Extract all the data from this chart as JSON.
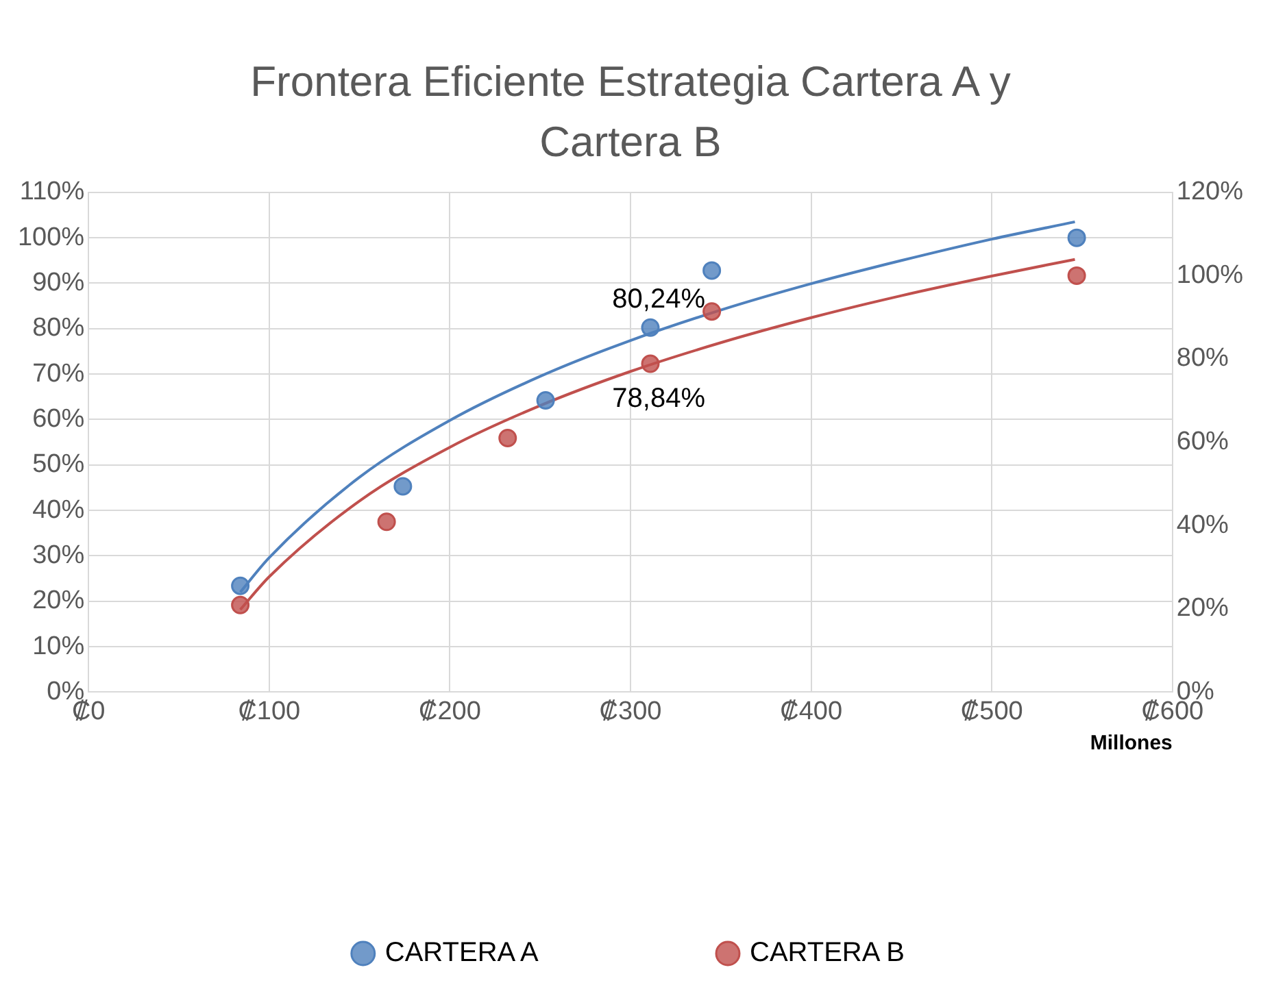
{
  "chart_data": {
    "type": "scatter",
    "title": "Frontera Eficiente Estrategia Cartera A y Cartera B",
    "xlabel": "Millones",
    "xlim": [
      0,
      600
    ],
    "xticks": [
      {
        "value": 0,
        "label": "₡0"
      },
      {
        "value": 100,
        "label": "₡100"
      },
      {
        "value": 200,
        "label": "₡200"
      },
      {
        "value": 300,
        "label": "₡300"
      },
      {
        "value": 400,
        "label": "₡400"
      },
      {
        "value": 500,
        "label": "₡500"
      },
      {
        "value": 600,
        "label": "₡600"
      }
    ],
    "ylim": [
      0,
      110
    ],
    "yticks": [
      {
        "value": 0,
        "label": "0%"
      },
      {
        "value": 10,
        "label": "10%"
      },
      {
        "value": 20,
        "label": "20%"
      },
      {
        "value": 30,
        "label": "30%"
      },
      {
        "value": 40,
        "label": "40%"
      },
      {
        "value": 50,
        "label": "50%"
      },
      {
        "value": 60,
        "label": "60%"
      },
      {
        "value": 70,
        "label": "70%"
      },
      {
        "value": 80,
        "label": "80%"
      },
      {
        "value": 90,
        "label": "90%"
      },
      {
        "value": 100,
        "label": "100%"
      },
      {
        "value": 110,
        "label": "110%"
      }
    ],
    "y2lim": [
      0,
      120
    ],
    "y2ticks": [
      {
        "value": 0,
        "label": "0%"
      },
      {
        "value": 20,
        "label": "20%"
      },
      {
        "value": 40,
        "label": "40%"
      },
      {
        "value": 60,
        "label": "60%"
      },
      {
        "value": 80,
        "label": "80%"
      },
      {
        "value": 100,
        "label": "100%"
      },
      {
        "value": 120,
        "label": "120%"
      }
    ],
    "grid": true,
    "legend": "bottom",
    "marker": "circle",
    "series": [
      {
        "name": "CARTERA A",
        "color": "#4f81bd",
        "x": [
          84,
          174,
          253,
          311,
          345,
          547
        ],
        "values": [
          23.4,
          45.3,
          64.2,
          80.24,
          92.8,
          100
        ],
        "value_labels": [
          null,
          null,
          null,
          "80,24%",
          null,
          null
        ]
      },
      {
        "name": "CARTERA B",
        "color": "#c0504d",
        "axis": "y2",
        "x": [
          84,
          165,
          232,
          311,
          345,
          547
        ],
        "values": [
          20.9,
          40.9,
          61.0,
          78.84,
          91.4,
          100
        ],
        "value_labels": [
          null,
          null,
          null,
          "78,84%",
          null,
          null
        ]
      },
      {
        "type": "line",
        "color": "#4f81bd",
        "marker": "none",
        "x": [
          84,
          100,
          150,
          200,
          250,
          300,
          350,
          400,
          450,
          500,
          546
        ],
        "values": [
          22.0,
          29.6,
          47.3,
          59.8,
          69.5,
          77.4,
          84.1,
          89.9,
          95.0,
          99.7,
          103.5
        ]
      },
      {
        "type": "line",
        "color": "#c0504d",
        "marker": "none",
        "axis": "y2",
        "x": [
          84,
          100,
          150,
          200,
          250,
          300,
          350,
          400,
          450,
          500,
          546
        ],
        "values": [
          19.8,
          27.7,
          45.9,
          58.8,
          68.8,
          77.0,
          83.9,
          89.9,
          95.2,
          99.9,
          103.9
        ]
      }
    ]
  }
}
